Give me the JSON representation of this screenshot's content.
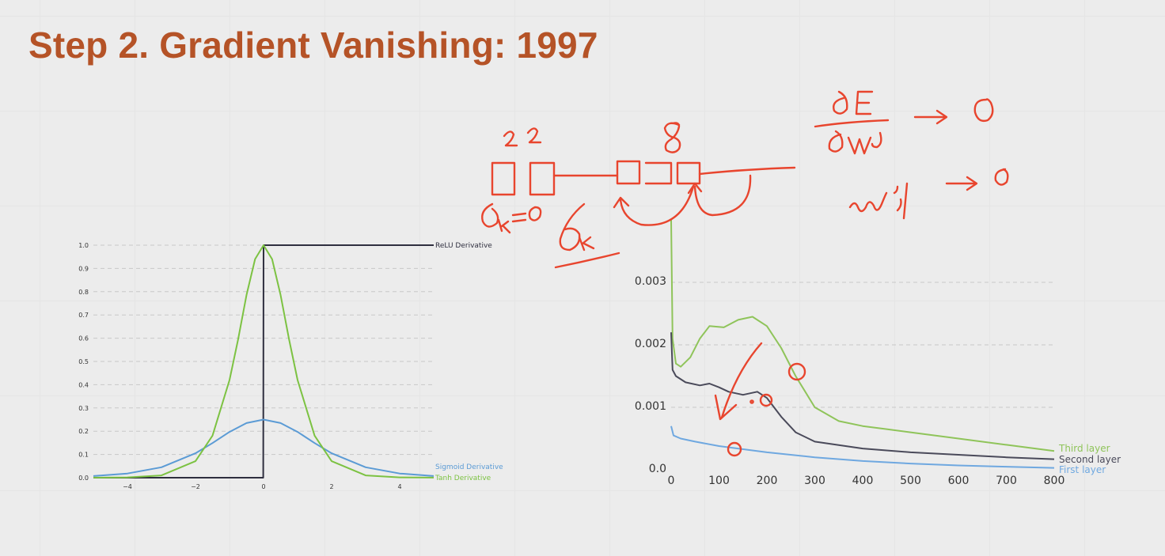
{
  "slide": {
    "title": "Step 2. Gradient Vanishing: 1997"
  },
  "chart_data": [
    {
      "type": "line",
      "title": "",
      "xlabel": "",
      "ylabel": "",
      "xlim": [
        -5,
        5
      ],
      "ylim": [
        0,
        1.0
      ],
      "xticks": [
        "−4",
        "−2",
        "0",
        "2",
        "4"
      ],
      "yticks": [
        "0.0",
        "0.1",
        "0.2",
        "0.3",
        "0.4",
        "0.5",
        "0.6",
        "0.7",
        "0.8",
        "0.9",
        "1.0"
      ],
      "grid": "horizontal dashed",
      "series": [
        {
          "name": "ReLU Derivative",
          "color": "#2f2f3f",
          "x": [
            -5,
            -4,
            -3,
            -2,
            -1,
            -0.01,
            0,
            1,
            2,
            3,
            4,
            5
          ],
          "y": [
            0,
            0,
            0,
            0,
            0,
            0,
            1,
            1,
            1,
            1,
            1,
            1
          ]
        },
        {
          "name": "Sigmoid Derivative",
          "color": "#5b9bd5",
          "x": [
            -5,
            -4,
            -3,
            -2,
            -1.5,
            -1,
            -0.5,
            0,
            0.5,
            1,
            1.5,
            2,
            3,
            4,
            5
          ],
          "y": [
            0.007,
            0.018,
            0.045,
            0.105,
            0.149,
            0.197,
            0.235,
            0.25,
            0.235,
            0.197,
            0.149,
            0.105,
            0.045,
            0.018,
            0.007
          ]
        },
        {
          "name": "Tanh Derivative",
          "color": "#7cc242",
          "x": [
            -5,
            -4,
            -3,
            -2,
            -1.5,
            -1,
            -0.75,
            -0.5,
            -0.25,
            0,
            0.25,
            0.5,
            0.75,
            1,
            1.5,
            2,
            3,
            4,
            5
          ],
          "y": [
            0.0002,
            0.0013,
            0.0099,
            0.071,
            0.181,
            0.42,
            0.594,
            0.786,
            0.94,
            1.0,
            0.94,
            0.786,
            0.594,
            0.42,
            0.181,
            0.071,
            0.0099,
            0.0013,
            0.0002
          ]
        }
      ]
    },
    {
      "type": "line",
      "title": "",
      "xlabel": "",
      "ylabel": "",
      "xlim": [
        0,
        800
      ],
      "ylim": [
        0,
        0.004
      ],
      "xticks": [
        "0",
        "100",
        "200",
        "300",
        "400",
        "500",
        "600",
        "700",
        "800"
      ],
      "yticks": [
        "0.0",
        "0.001",
        "0.002",
        "0.003"
      ],
      "grid": "horizontal dashed",
      "series": [
        {
          "name": "Third layer",
          "color": "#8fc45a",
          "x": [
            0,
            3,
            10,
            20,
            40,
            60,
            80,
            110,
            140,
            170,
            200,
            230,
            260,
            300,
            350,
            400,
            450,
            500,
            600,
            700,
            800
          ],
          "y": [
            0.004,
            0.0021,
            0.0017,
            0.00165,
            0.0018,
            0.0021,
            0.0023,
            0.00228,
            0.0024,
            0.00245,
            0.0023,
            0.00195,
            0.0015,
            0.001,
            0.00078,
            0.0007,
            0.00065,
            0.0006,
            0.0005,
            0.0004,
            0.0003
          ]
        },
        {
          "name": "Second layer",
          "color": "#4a4a5a",
          "x": [
            0,
            3,
            10,
            30,
            60,
            80,
            100,
            120,
            150,
            180,
            200,
            230,
            260,
            300,
            400,
            500,
            600,
            700,
            800
          ],
          "y": [
            0.0022,
            0.0016,
            0.0015,
            0.0014,
            0.00135,
            0.00138,
            0.00132,
            0.00125,
            0.0012,
            0.00125,
            0.00115,
            0.00085,
            0.0006,
            0.00045,
            0.00034,
            0.00028,
            0.00024,
            0.0002,
            0.00017
          ]
        },
        {
          "name": "First layer",
          "color": "#6fa8e0",
          "x": [
            0,
            5,
            20,
            50,
            100,
            200,
            300,
            400,
            500,
            600,
            700,
            800
          ],
          "y": [
            0.0007,
            0.00055,
            0.0005,
            0.00045,
            0.00038,
            0.00028,
            0.0002,
            0.00014,
            0.0001,
            7e-05,
            5e-05,
            3e-05
          ]
        }
      ]
    }
  ]
}
